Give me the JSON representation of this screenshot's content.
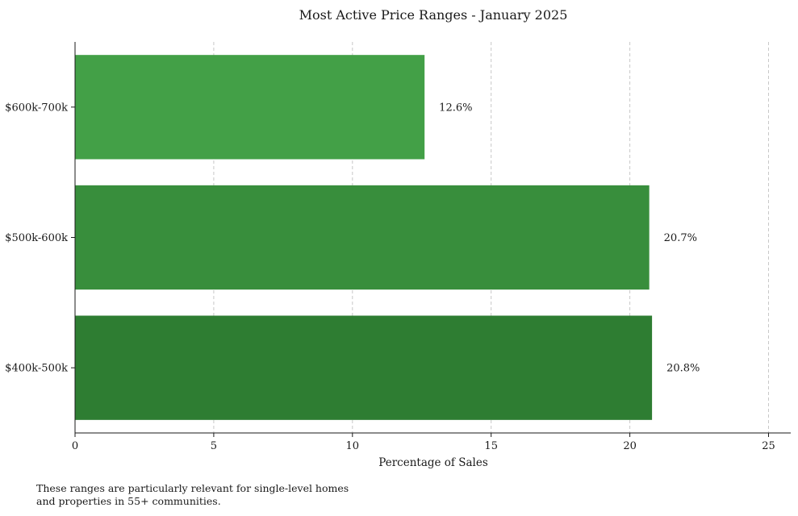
{
  "chart_data": {
    "type": "bar",
    "orientation": "horizontal",
    "title": "Most Active Price Ranges - January 2025",
    "xlabel": "Percentage of Sales",
    "ylabel": "",
    "categories": [
      "$400k-500k",
      "$500k-600k",
      "$600k-700k"
    ],
    "values": [
      20.8,
      20.7,
      12.6
    ],
    "value_labels": [
      "20.8%",
      "20.7%",
      "12.6%"
    ],
    "bar_colors": [
      "#2e7d32",
      "#388e3c",
      "#43a047"
    ],
    "xlim": [
      0,
      25.8
    ],
    "xticks": [
      0,
      5,
      10,
      15,
      20,
      25
    ],
    "grid": "x-dashed",
    "legend": "none"
  },
  "footnote": {
    "line1": "These ranges are particularly relevant for single-level homes",
    "line2": "and properties in 55+ communities."
  }
}
